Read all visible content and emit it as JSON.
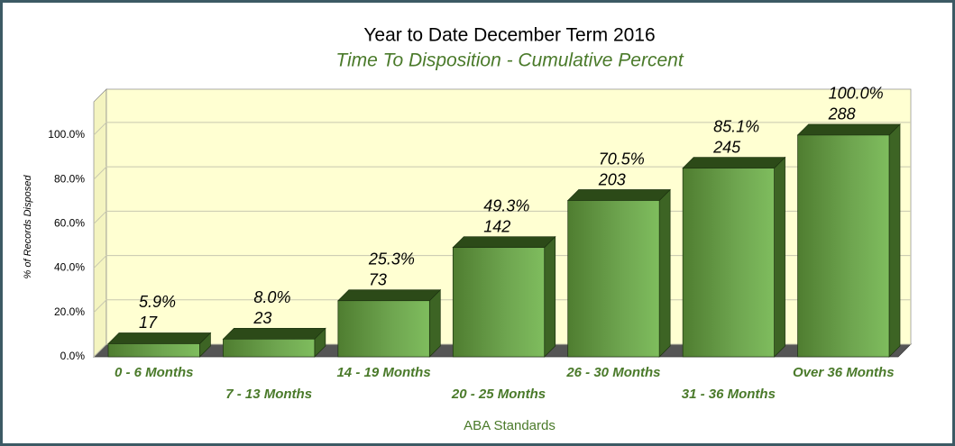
{
  "chart_data": {
    "type": "bar3d",
    "title": "Year to Date December Term 2016",
    "subtitle": "Time To Disposition - Cumulative Percent",
    "x_label": "ABA Standards",
    "y_label": "% of Records Disposed",
    "categories": [
      "0 - 6 Months",
      "7 - 13 Months",
      "14 - 19 Months",
      "20 - 25 Months",
      "26 - 30 Months",
      "31 - 36 Months",
      "Over 36 Months"
    ],
    "values": [
      5.9,
      8.0,
      25.3,
      49.3,
      70.5,
      85.1,
      100.0
    ],
    "value_labels": [
      "5.9%",
      "8.0%",
      "25.3%",
      "49.3%",
      "70.5%",
      "85.1%",
      "100.0%"
    ],
    "counts": [
      17,
      23,
      73,
      142,
      203,
      245,
      288
    ],
    "color": "#6a9e48",
    "ylim": [
      0,
      115
    ],
    "yticks": [
      {
        "value": 0,
        "label": "0.0%"
      },
      {
        "value": 20,
        "label": "20.0%"
      },
      {
        "value": 40,
        "label": "40.0%"
      },
      {
        "value": 60,
        "label": "60.0%"
      },
      {
        "value": 80,
        "label": "80.0%"
      },
      {
        "value": 100,
        "label": "100.0%"
      }
    ],
    "grid": true
  }
}
